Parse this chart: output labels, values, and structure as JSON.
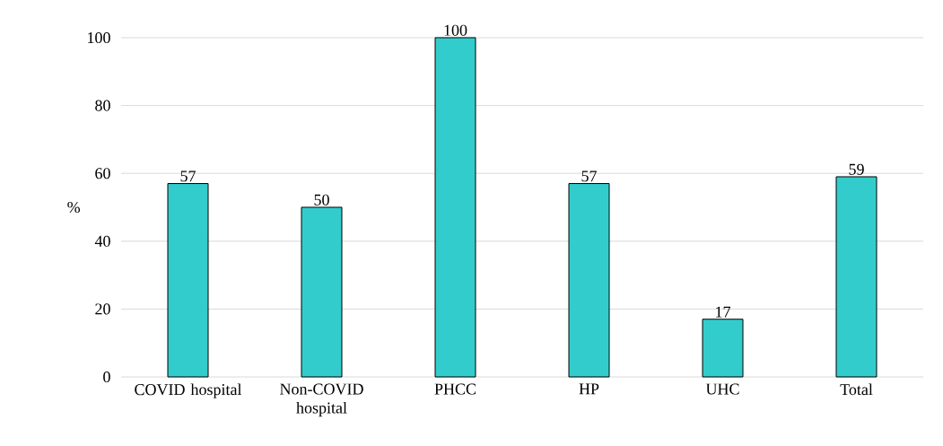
{
  "chart_data": {
    "type": "bar",
    "ylabel": "%",
    "categories": [
      "COVID hospital",
      "Non-COVID hospital",
      "PHCC",
      "HP",
      "UHC",
      "Total"
    ],
    "values": [
      57,
      50,
      100,
      57,
      17,
      59
    ],
    "color": "#33cccc",
    "ylim": [
      0,
      100
    ],
    "yticks": [
      0,
      20,
      40,
      60,
      80,
      100
    ],
    "grid": "y",
    "data_labels": true
  }
}
